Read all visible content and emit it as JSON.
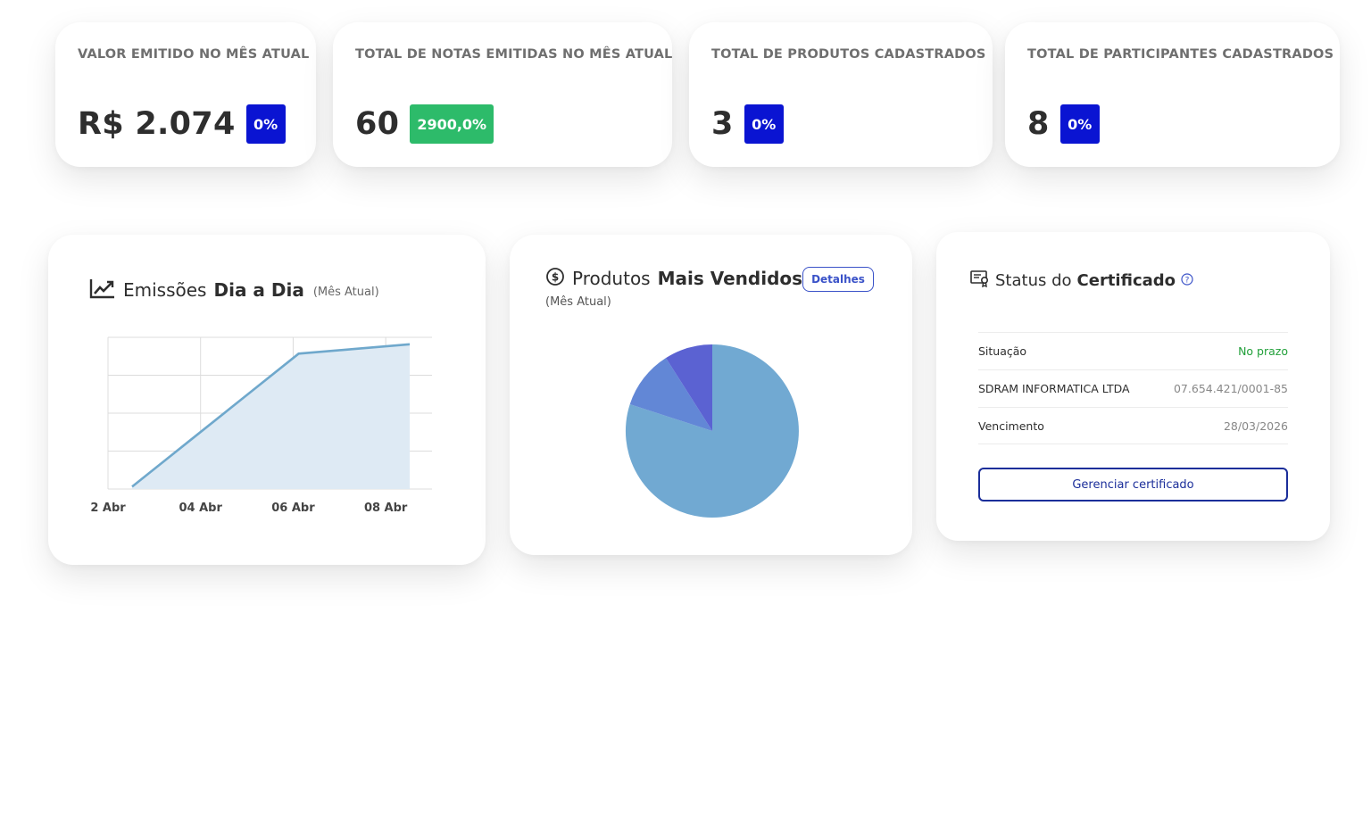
{
  "stats": [
    {
      "title": "VALOR EMITIDO NO MÊS ATUAL",
      "value": "R$ 2.074",
      "badge": "0%",
      "badge_color": "#0a14d2"
    },
    {
      "title": "TOTAL DE NOTAS EMITIDAS NO MÊS ATUAL",
      "value": "60",
      "badge": "2900,0%",
      "badge_color": "#2dbb6a"
    },
    {
      "title": "TOTAL DE PRODUTOS CADASTRADOS",
      "value": "3",
      "badge": "0%",
      "badge_color": "#0a14d2"
    },
    {
      "title": "TOTAL DE PARTICIPANTES CADASTRADOS",
      "value": "8",
      "badge": "0%",
      "badge_color": "#0a14d2"
    }
  ],
  "emissoes": {
    "title_normal": "Emissões",
    "title_bold": "Dia a Dia",
    "title_small": "(Mês Atual)",
    "icon": "line-chart-icon"
  },
  "produtos": {
    "title_normal": "Produtos",
    "title_bold": "Mais Vendidos",
    "subtitle": "(Mês Atual)",
    "details_label": "Detalhes",
    "icon": "dollar-circle-icon"
  },
  "certificado": {
    "title_normal": "Status do",
    "title_bold": "Certificado",
    "icon": "certificate-icon",
    "help_icon": "question-circle-icon",
    "rows": [
      {
        "label": "Situação",
        "value": "No prazo"
      },
      {
        "label": "SDRAM INFORMATICA LTDA",
        "value": "07.654.421/0001-85"
      },
      {
        "label": "Vencimento",
        "value": "28/03/2026"
      }
    ],
    "button_label": "Gerenciar certificado",
    "status_color": "#22a03a"
  },
  "chart_data": [
    {
      "type": "area",
      "x": [
        "03 Abr",
        "04 Abr",
        "05 Abr",
        "06 Abr",
        "07 Abr",
        "08 Abr"
      ],
      "values": [
        1,
        20,
        39,
        58,
        60,
        62
      ],
      "tick_labels": [
        "2 Abr",
        "04 Abr",
        "06 Abr",
        "08 Abr"
      ],
      "ylim": [
        0,
        65
      ],
      "grid": true,
      "line_color": "#6fa8cc",
      "fill_color": "#deeaf4"
    },
    {
      "type": "pie",
      "slices": [
        {
          "value": 80,
          "color": "#71a9d2"
        },
        {
          "value": 11,
          "color": "#6287d6"
        },
        {
          "value": 9,
          "color": "#5b62d2"
        }
      ]
    }
  ]
}
